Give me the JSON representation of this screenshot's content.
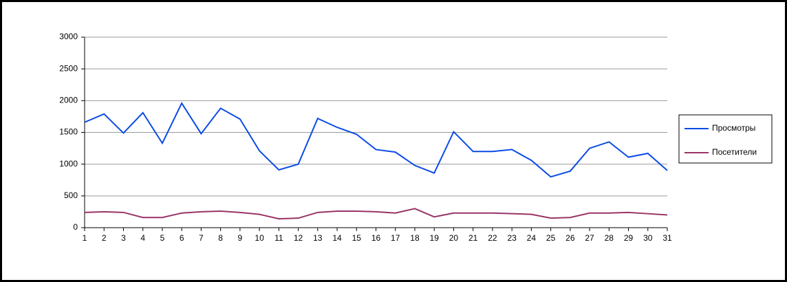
{
  "chart_data": {
    "type": "line",
    "x": [
      1,
      2,
      3,
      4,
      5,
      6,
      7,
      8,
      9,
      10,
      11,
      12,
      13,
      14,
      15,
      16,
      17,
      18,
      19,
      20,
      21,
      22,
      23,
      24,
      25,
      26,
      27,
      28,
      29,
      30,
      31
    ],
    "series": [
      {
        "name": "Просмотры",
        "color": "#0a4be6",
        "values": [
          1660,
          1790,
          1490,
          1810,
          1330,
          1960,
          1480,
          1880,
          1710,
          1210,
          910,
          1000,
          1720,
          1580,
          1470,
          1230,
          1190,
          980,
          860,
          1510,
          1200,
          1200,
          1230,
          1060,
          800,
          890,
          1250,
          1350,
          1110,
          1170,
          900
        ]
      },
      {
        "name": "Посетители",
        "color": "#993366",
        "values": [
          240,
          250,
          240,
          160,
          160,
          230,
          250,
          260,
          240,
          210,
          140,
          150,
          240,
          260,
          260,
          250,
          230,
          300,
          170,
          230,
          230,
          230,
          220,
          210,
          150,
          160,
          230,
          230,
          240,
          220,
          200
        ]
      }
    ],
    "xlim": [
      1,
      31
    ],
    "xticks": [
      1,
      2,
      3,
      4,
      5,
      6,
      7,
      8,
      9,
      10,
      11,
      12,
      13,
      14,
      15,
      16,
      17,
      18,
      19,
      20,
      21,
      22,
      23,
      24,
      25,
      26,
      27,
      28,
      29,
      30,
      31
    ],
    "ylim": [
      0,
      3000
    ],
    "yticks": [
      0,
      500,
      1000,
      1500,
      2000,
      2500,
      3000
    ],
    "grid": true,
    "legend": "right"
  }
}
